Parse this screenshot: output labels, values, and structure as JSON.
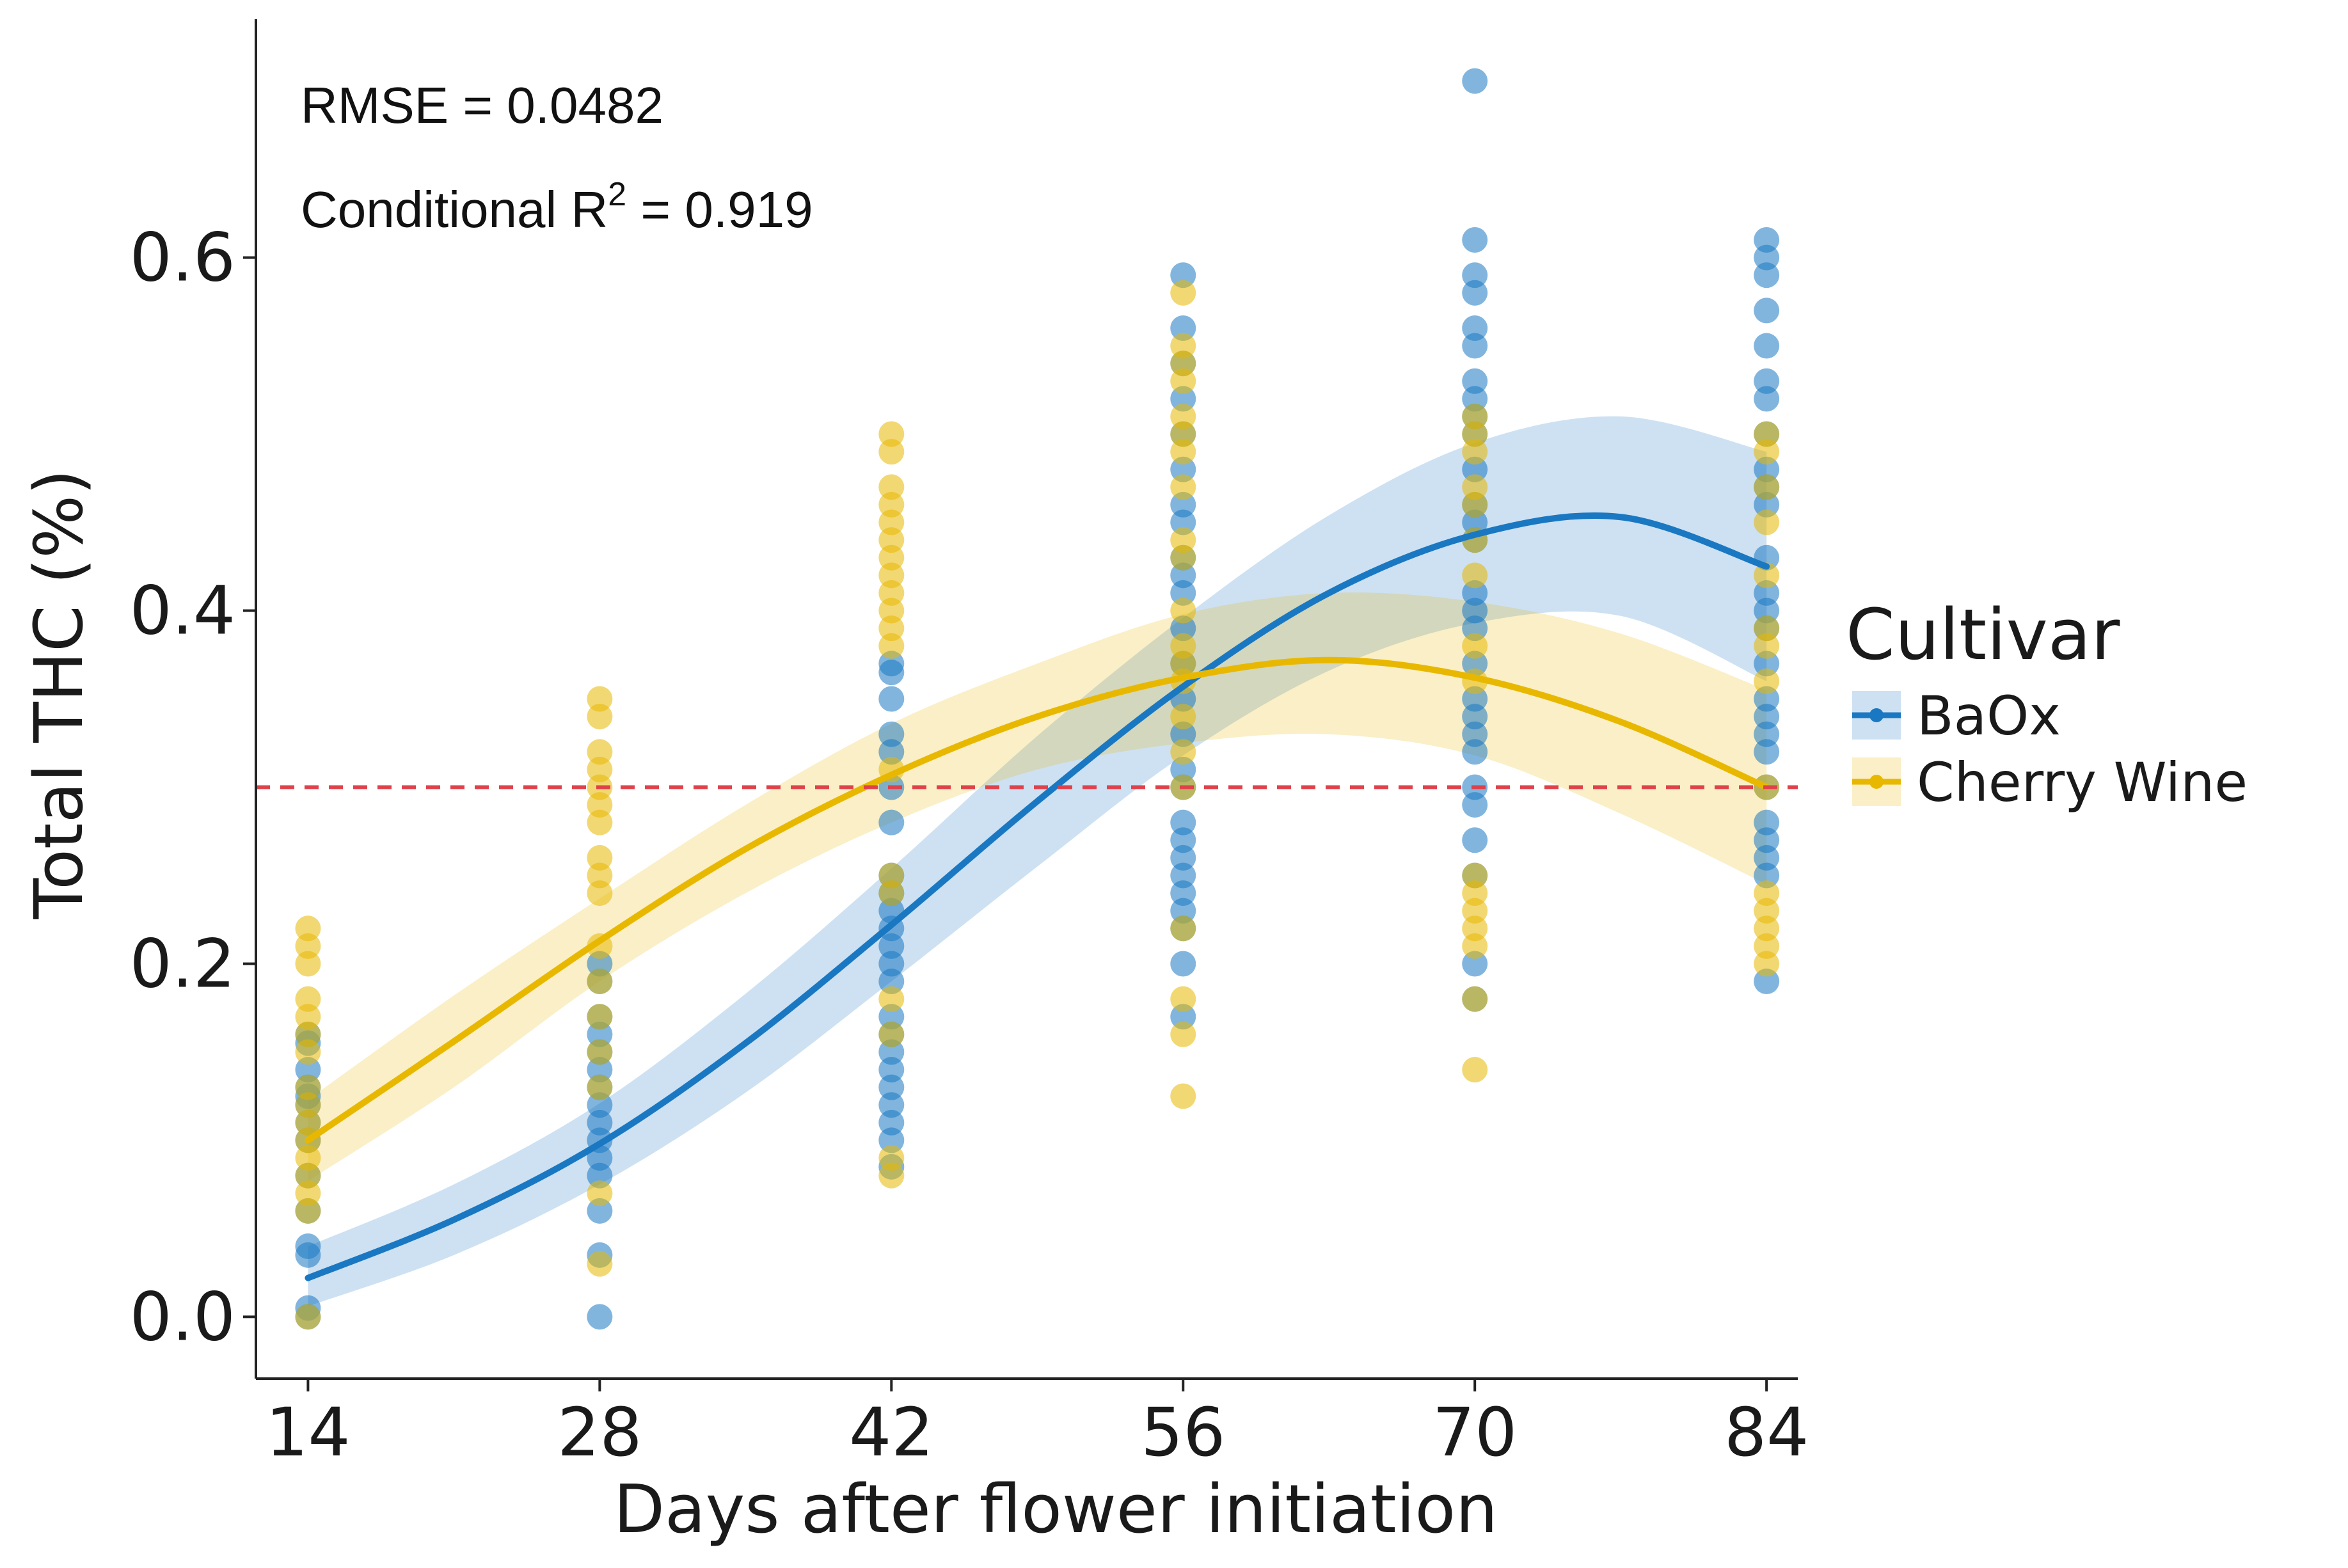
{
  "chart_data": {
    "type": "scatter",
    "title": "",
    "xlabel": "Days after flower initiation",
    "ylabel": "Total THC (%)",
    "x_ticks": [
      14,
      28,
      42,
      56,
      70,
      84
    ],
    "x_tick_labels": [
      "14",
      "28",
      "42",
      "56",
      "70",
      "84"
    ],
    "y_ticks": [
      0.0,
      0.2,
      0.4,
      0.6
    ],
    "y_tick_labels": [
      "0.0",
      "0.2",
      "0.4",
      "0.6"
    ],
    "xlim": [
      11.5,
      85.5
    ],
    "ylim": [
      -0.035,
      0.735
    ],
    "grid": false,
    "reference_line": {
      "y": 0.3,
      "color": "#e0404a",
      "style": "dashed"
    },
    "annotations": {
      "rmse": "RMSE = 0.0482",
      "r2_prefix": "Conditional R",
      "r2_superscript": "2",
      "r2_suffix": " = 0.919"
    },
    "legend": {
      "title": "Cultivar",
      "position": "right"
    },
    "series": [
      {
        "name": "BaOx",
        "color": "#1a78c2",
        "fit": {
          "x": [
            14,
            21,
            28,
            35,
            42,
            49,
            56,
            63,
            70,
            77,
            84
          ],
          "y": [
            0.022,
            0.055,
            0.098,
            0.155,
            0.222,
            0.292,
            0.357,
            0.41,
            0.443,
            0.453,
            0.425
          ],
          "lower": [
            0.006,
            0.035,
            0.075,
            0.127,
            0.19,
            0.255,
            0.318,
            0.366,
            0.393,
            0.397,
            0.36
          ],
          "upper": [
            0.04,
            0.075,
            0.121,
            0.183,
            0.254,
            0.329,
            0.396,
            0.454,
            0.495,
            0.51,
            0.49
          ]
        },
        "points": [
          {
            "x": 14,
            "y": [
              0.0,
              0.005,
              0.035,
              0.04,
              0.06,
              0.08,
              0.1,
              0.11,
              0.12,
              0.125,
              0.13,
              0.14,
              0.155,
              0.16
            ]
          },
          {
            "x": 28,
            "y": [
              0.0,
              0.035,
              0.06,
              0.08,
              0.09,
              0.1,
              0.11,
              0.12,
              0.13,
              0.14,
              0.15,
              0.16,
              0.17,
              0.19,
              0.2
            ]
          },
          {
            "x": 42,
            "y": [
              0.085,
              0.1,
              0.11,
              0.12,
              0.13,
              0.14,
              0.15,
              0.16,
              0.17,
              0.19,
              0.2,
              0.21,
              0.22,
              0.23,
              0.24,
              0.25,
              0.28,
              0.3,
              0.32,
              0.33,
              0.35,
              0.365,
              0.37
            ]
          },
          {
            "x": 56,
            "y": [
              0.17,
              0.2,
              0.22,
              0.23,
              0.24,
              0.25,
              0.26,
              0.27,
              0.28,
              0.3,
              0.31,
              0.33,
              0.35,
              0.37,
              0.39,
              0.41,
              0.42,
              0.43,
              0.45,
              0.46,
              0.48,
              0.5,
              0.52,
              0.54,
              0.56,
              0.59
            ]
          },
          {
            "x": 70,
            "y": [
              0.18,
              0.2,
              0.25,
              0.27,
              0.29,
              0.3,
              0.32,
              0.33,
              0.34,
              0.35,
              0.37,
              0.39,
              0.4,
              0.41,
              0.44,
              0.45,
              0.46,
              0.48,
              0.5,
              0.51,
              0.52,
              0.53,
              0.55,
              0.56,
              0.58,
              0.59,
              0.61,
              0.7
            ]
          },
          {
            "x": 84,
            "y": [
              0.19,
              0.25,
              0.26,
              0.27,
              0.28,
              0.3,
              0.32,
              0.33,
              0.34,
              0.35,
              0.37,
              0.39,
              0.4,
              0.41,
              0.43,
              0.46,
              0.47,
              0.48,
              0.5,
              0.52,
              0.53,
              0.55,
              0.57,
              0.59,
              0.6,
              0.61
            ]
          }
        ]
      },
      {
        "name": "Cherry Wine",
        "color": "#e8b800",
        "fit": {
          "x": [
            14,
            21,
            28,
            35,
            42,
            49,
            56,
            63,
            70,
            77,
            84
          ],
          "y": [
            0.1,
            0.156,
            0.213,
            0.265,
            0.307,
            0.34,
            0.362,
            0.372,
            0.362,
            0.337,
            0.3
          ],
          "lower": [
            0.077,
            0.13,
            0.19,
            0.24,
            0.28,
            0.31,
            0.325,
            0.33,
            0.318,
            0.285,
            0.245
          ],
          "upper": [
            0.123,
            0.182,
            0.237,
            0.29,
            0.336,
            0.37,
            0.398,
            0.41,
            0.405,
            0.387,
            0.355
          ]
        },
        "points": [
          {
            "x": 14,
            "y": [
              0.0,
              0.06,
              0.07,
              0.08,
              0.09,
              0.1,
              0.11,
              0.12,
              0.13,
              0.15,
              0.16,
              0.17,
              0.18,
              0.2,
              0.21,
              0.22
            ]
          },
          {
            "x": 28,
            "y": [
              0.03,
              0.07,
              0.13,
              0.15,
              0.17,
              0.19,
              0.21,
              0.24,
              0.25,
              0.26,
              0.28,
              0.29,
              0.3,
              0.31,
              0.32,
              0.34,
              0.35
            ]
          },
          {
            "x": 42,
            "y": [
              0.08,
              0.09,
              0.16,
              0.18,
              0.24,
              0.25,
              0.31,
              0.38,
              0.39,
              0.4,
              0.41,
              0.42,
              0.43,
              0.44,
              0.45,
              0.46,
              0.47,
              0.49,
              0.5
            ]
          },
          {
            "x": 56,
            "y": [
              0.125,
              0.16,
              0.18,
              0.22,
              0.3,
              0.32,
              0.34,
              0.36,
              0.37,
              0.38,
              0.4,
              0.43,
              0.44,
              0.47,
              0.49,
              0.5,
              0.51,
              0.53,
              0.54,
              0.55,
              0.58
            ]
          },
          {
            "x": 70,
            "y": [
              0.14,
              0.18,
              0.21,
              0.22,
              0.23,
              0.24,
              0.25,
              0.36,
              0.38,
              0.42,
              0.44,
              0.46,
              0.47,
              0.49,
              0.5,
              0.51
            ]
          },
          {
            "x": 84,
            "y": [
              0.2,
              0.21,
              0.22,
              0.23,
              0.24,
              0.3,
              0.36,
              0.38,
              0.39,
              0.42,
              0.45,
              0.47,
              0.49,
              0.5
            ]
          }
        ]
      }
    ]
  }
}
